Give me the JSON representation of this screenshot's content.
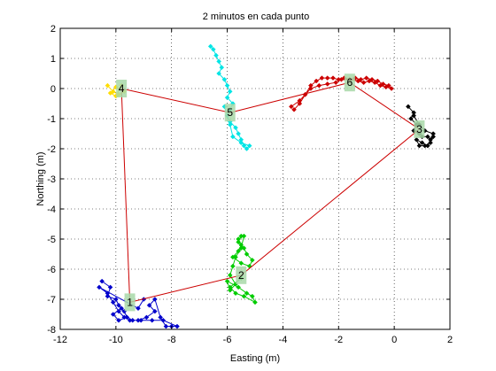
{
  "chart_data": {
    "type": "scatter",
    "title": "2 minutos en cada punto",
    "xlabel": "Easting  (m)",
    "ylabel": "Northing  (m)",
    "xlim": [
      -12,
      2
    ],
    "ylim": [
      -8,
      2
    ],
    "xticks": [
      -12,
      -10,
      -8,
      -6,
      -4,
      -2,
      0,
      2
    ],
    "yticks": [
      -8,
      -7,
      -6,
      -5,
      -4,
      -3,
      -2,
      -1,
      0,
      1,
      2
    ],
    "xtick_labels": [
      "-12",
      "-10",
      "-8",
      "-6",
      "-4",
      "-2",
      "0",
      "2"
    ],
    "ytick_labels": [
      "-8",
      "-7",
      "-6",
      "-5",
      "-4",
      "-3",
      "-2",
      "-1",
      "0",
      "1",
      "2"
    ],
    "grid": true,
    "colors": {
      "route": "#cc0000",
      "marker_box": "#a8d8a8",
      "grid": "#000000"
    },
    "route": {
      "x": [
        -9.5,
        -5.5,
        0.9,
        -1.6,
        -5.9,
        -9.8,
        -9.5
      ],
      "y": [
        -7.1,
        -6.2,
        -1.35,
        0.2,
        -0.8,
        0.0,
        -7.1
      ]
    },
    "waypoints": [
      {
        "label": "1",
        "x": -9.5,
        "y": -7.1
      },
      {
        "label": "2",
        "x": -5.5,
        "y": -6.2
      },
      {
        "label": "3",
        "x": 0.9,
        "y": -1.35
      },
      {
        "label": "4",
        "x": -9.8,
        "y": 0.0
      },
      {
        "label": "5",
        "x": -5.9,
        "y": -0.8
      },
      {
        "label": "6",
        "x": -1.6,
        "y": 0.2
      }
    ],
    "series": [
      {
        "color": "#0000cc",
        "x": [
          -10.5,
          -10.2,
          -10.3,
          -10.0,
          -9.9,
          -9.7,
          -9.6,
          -9.9,
          -10.1,
          -9.8,
          -9.5,
          -9.2,
          -8.9,
          -8.6,
          -8.8,
          -8.6,
          -8.4,
          -8.2,
          -8.0,
          -7.8,
          -8.3,
          -8.7,
          -9.1,
          -9.4,
          -9.7,
          -9.9,
          -10.1,
          -10.3,
          -10.6,
          -9.2,
          -9.0
        ],
        "y": [
          -6.4,
          -6.6,
          -6.9,
          -7.0,
          -7.2,
          -7.4,
          -7.6,
          -7.7,
          -7.5,
          -7.3,
          -7.7,
          -7.7,
          -7.6,
          -7.4,
          -7.2,
          -7.0,
          -7.6,
          -7.9,
          -7.9,
          -7.9,
          -7.7,
          -7.7,
          -7.7,
          -7.7,
          -7.6,
          -7.4,
          -7.1,
          -6.8,
          -6.6,
          -7.3,
          -7.0
        ]
      },
      {
        "color": "#00cc00",
        "x": [
          -5.5,
          -5.6,
          -5.4,
          -5.3,
          -5.1,
          -5.2,
          -5.5,
          -5.8,
          -5.6,
          -5.5,
          -5.6,
          -5.4,
          -5.5,
          -5.7,
          -5.8,
          -5.9,
          -5.7,
          -5.9,
          -6.0,
          -5.6,
          -5.3,
          -5.1,
          -5.0,
          -5.4,
          -5.7,
          -5.9,
          -5.5
        ],
        "y": [
          -4.9,
          -5.1,
          -5.3,
          -5.5,
          -5.7,
          -5.9,
          -5.8,
          -5.6,
          -5.4,
          -5.2,
          -5.0,
          -4.9,
          -5.3,
          -5.6,
          -5.9,
          -6.2,
          -6.5,
          -6.7,
          -6.4,
          -6.6,
          -6.8,
          -6.9,
          -7.1,
          -6.9,
          -6.8,
          -6.6,
          -6.3
        ]
      },
      {
        "color": "#000000",
        "x": [
          0.5,
          0.7,
          0.6,
          0.8,
          0.7,
          0.9,
          1.0,
          1.2,
          1.3,
          1.4,
          1.3,
          1.1,
          0.9,
          0.8,
          1.0,
          1.2,
          1.4,
          1.1,
          0.9,
          0.7
        ],
        "y": [
          -0.6,
          -0.8,
          -1.0,
          -1.2,
          -1.4,
          -1.5,
          -1.6,
          -1.6,
          -1.7,
          -1.6,
          -1.8,
          -1.9,
          -1.9,
          -1.7,
          -1.8,
          -1.9,
          -1.5,
          -1.4,
          -1.2,
          -0.9
        ]
      },
      {
        "color": "#ffdd00",
        "x": [
          -10.3,
          -10.1,
          -9.9,
          -9.7,
          -10.0,
          -10.2,
          -10.0,
          -9.8
        ],
        "y": [
          0.1,
          -0.1,
          -0.2,
          -0.1,
          0.05,
          -0.15,
          -0.25,
          0.1
        ]
      },
      {
        "color": "#00e5e5",
        "x": [
          -6.6,
          -6.5,
          -6.4,
          -6.3,
          -6.2,
          -6.3,
          -6.1,
          -6.0,
          -5.9,
          -6.0,
          -5.8,
          -5.9,
          -6.0,
          -5.9,
          -5.7,
          -5.6,
          -5.5,
          -5.4,
          -5.3,
          -5.2,
          -5.5,
          -5.8,
          -5.9,
          -6.1
        ],
        "y": [
          1.4,
          1.3,
          1.1,
          0.9,
          0.7,
          0.5,
          0.3,
          0.1,
          -0.1,
          -0.3,
          -0.5,
          -0.7,
          -0.9,
          -1.1,
          -1.3,
          -1.5,
          -1.7,
          -1.9,
          -2.0,
          -1.9,
          -1.8,
          -1.6,
          -1.2,
          -0.6
        ]
      },
      {
        "color": "#cc0000",
        "x": [
          -3.6,
          -3.4,
          -3.2,
          -3.0,
          -2.8,
          -2.6,
          -2.4,
          -2.2,
          -2.0,
          -1.8,
          -1.6,
          -1.4,
          -1.2,
          -1.0,
          -0.8,
          -0.6,
          -0.4,
          -0.2,
          -0.1,
          -0.3,
          -0.5,
          -0.7,
          -0.9,
          -1.1,
          -1.3,
          -1.6,
          -1.9,
          -2.1,
          -2.4,
          -2.7,
          -3.0,
          -3.2,
          -3.4,
          -3.7
        ],
        "y": [
          -0.7,
          -0.5,
          -0.2,
          0.1,
          0.25,
          0.35,
          0.35,
          0.35,
          0.3,
          0.35,
          0.3,
          0.35,
          0.3,
          0.35,
          0.3,
          0.25,
          0.15,
          0.1,
          0.0,
          0.05,
          0.1,
          0.2,
          0.25,
          0.2,
          0.25,
          0.3,
          0.3,
          0.2,
          0.15,
          0.1,
          0.0,
          -0.2,
          -0.4,
          -0.6
        ]
      }
    ]
  }
}
